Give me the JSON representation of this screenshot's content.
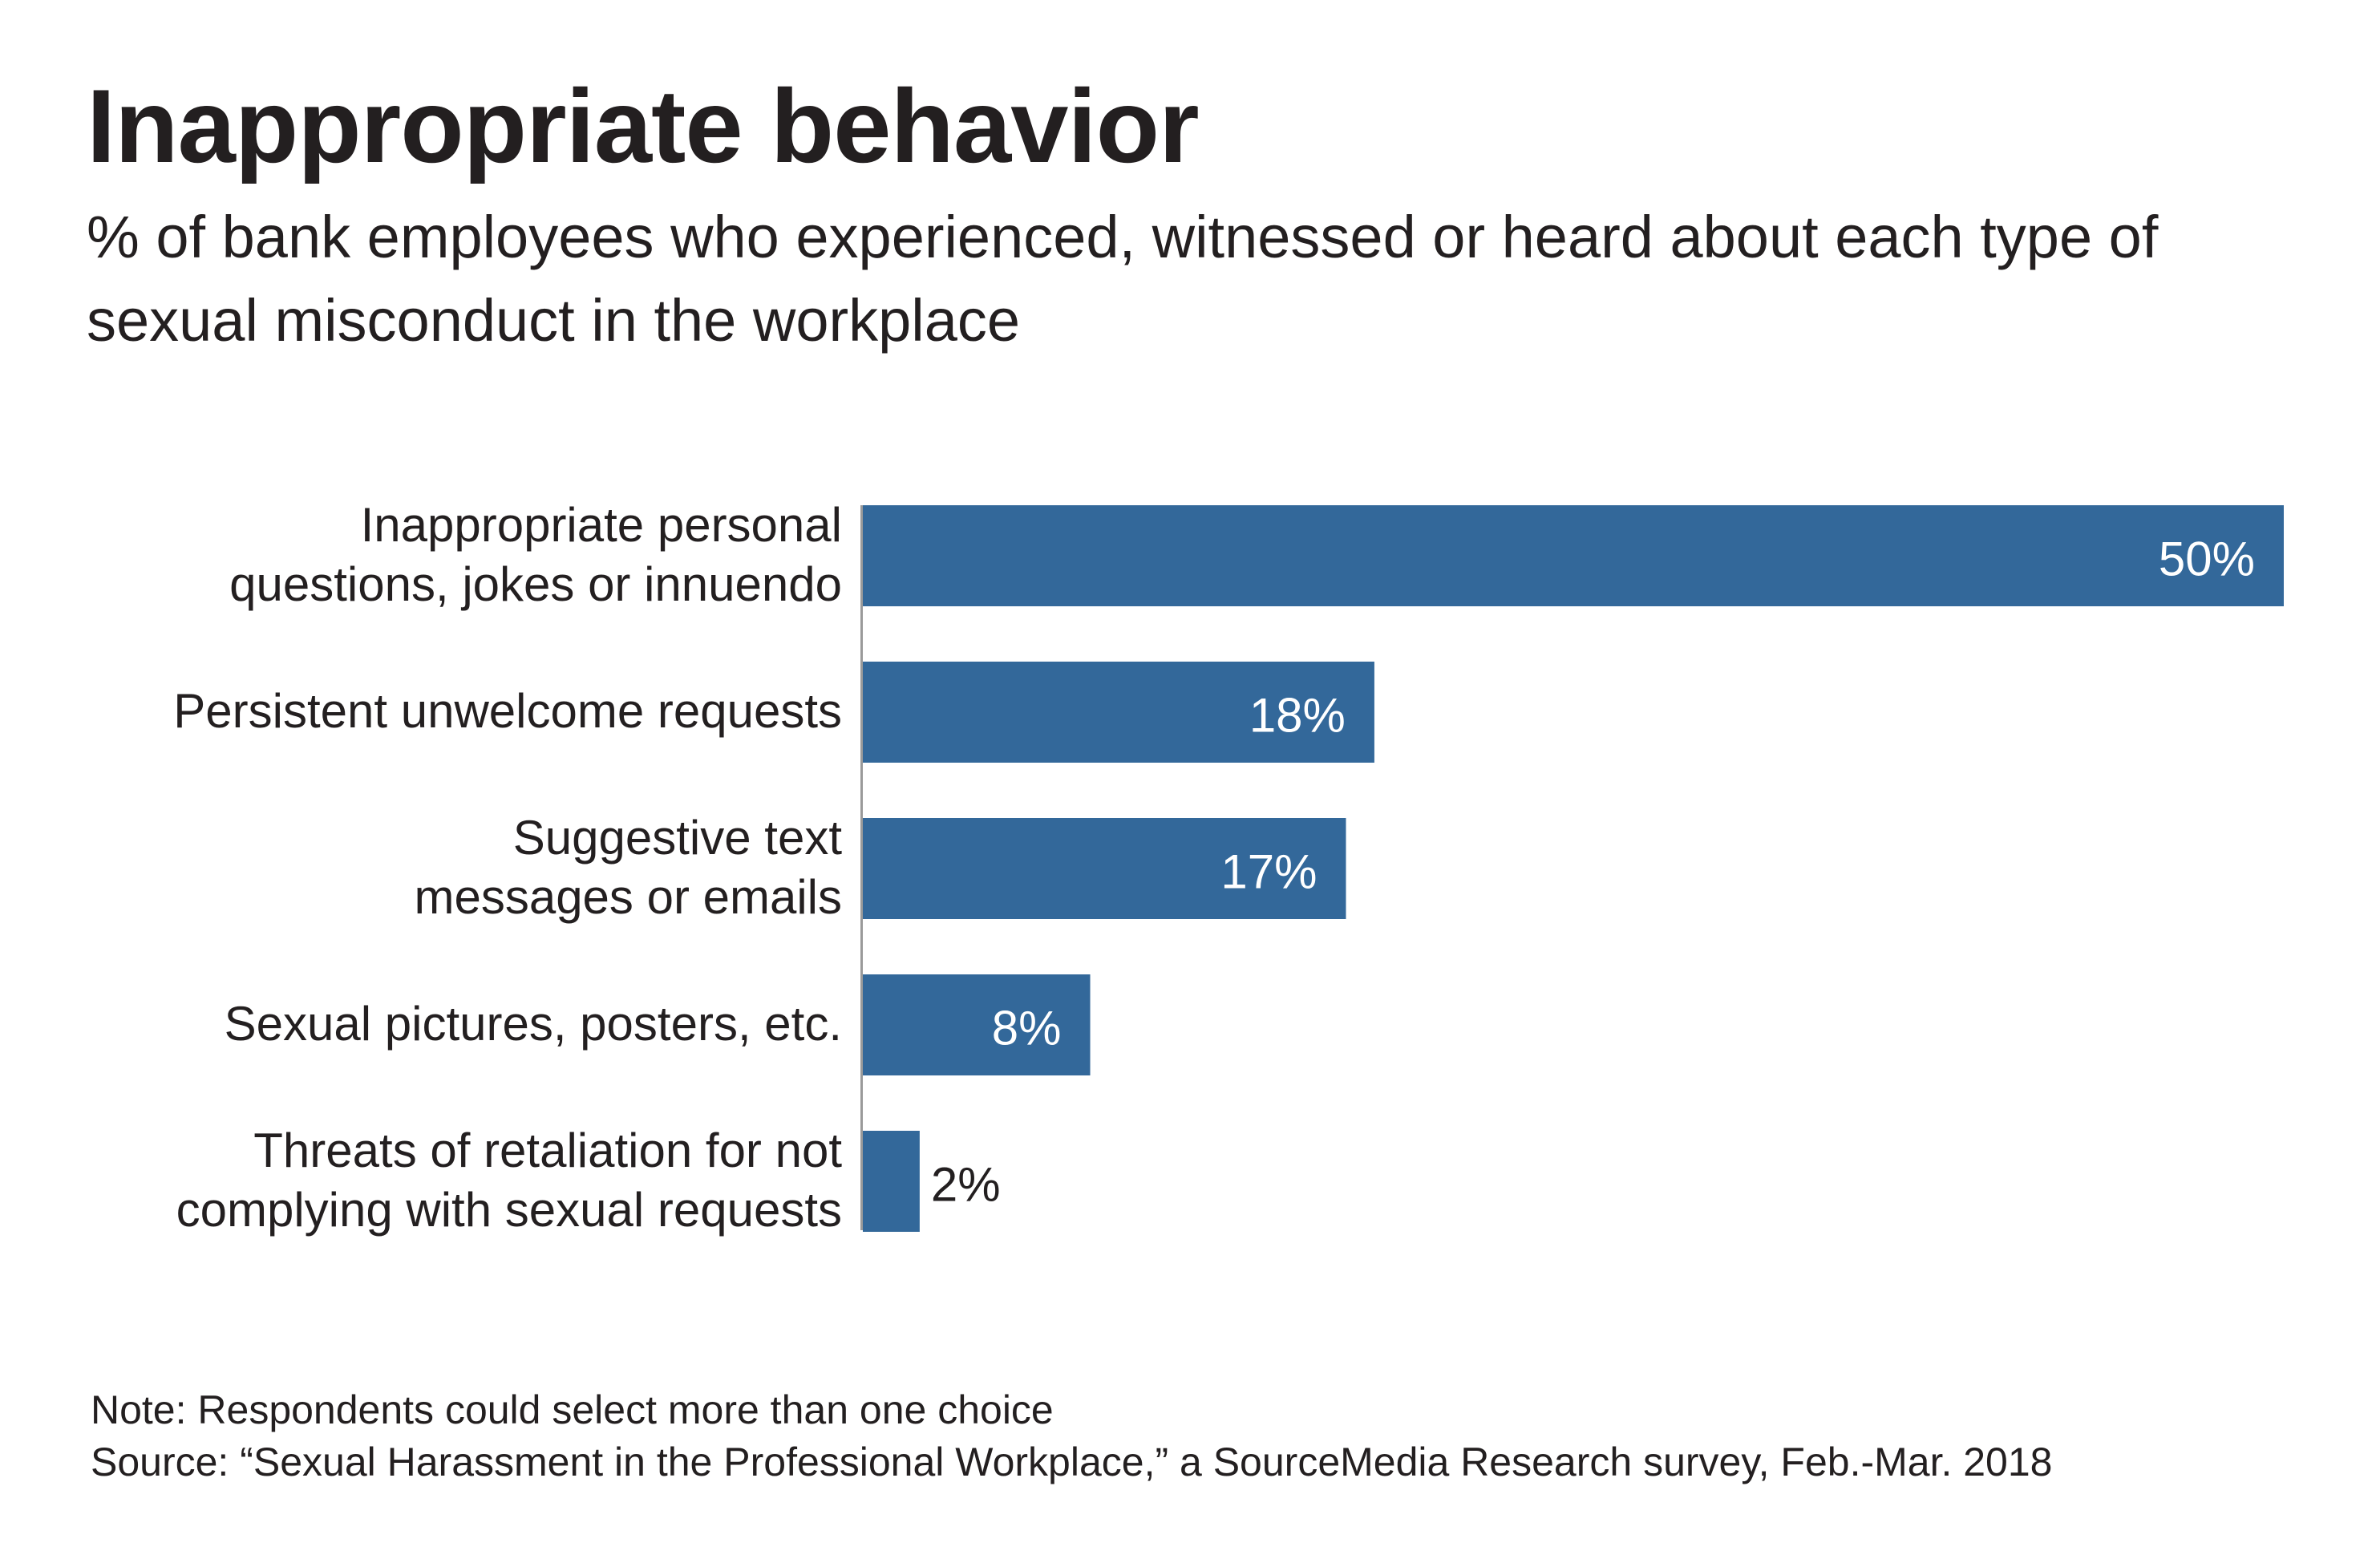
{
  "chart_data": {
    "type": "bar",
    "orientation": "horizontal",
    "title": "Inappropriate behavior",
    "subtitle": "% of bank employees who experienced, witnessed or heard about each type of sexual misconduct in the workplace",
    "categories": [
      [
        "Inappropriate personal",
        "questions, jokes or innuendo"
      ],
      [
        "Persistent unwelcome requests"
      ],
      [
        "Suggestive text",
        "messages or emails"
      ],
      [
        "Sexual pictures, posters, etc."
      ],
      [
        "Threats of retaliation for not",
        "complying with sexual requests"
      ]
    ],
    "values": [
      50,
      18,
      17,
      8,
      2
    ],
    "value_labels": [
      "50%",
      "18%",
      "17%",
      "8%",
      "2%"
    ],
    "xlim": [
      0,
      50
    ],
    "bar_color": "#33689a",
    "label_inside_color": "#ffffff",
    "label_outside_color": "#231f20",
    "xlabel": "",
    "ylabel": "",
    "grid": false,
    "legend": "none"
  },
  "footer": {
    "note": "Note: Respondents could select more than one choice",
    "source": "Source: “Sexual Harassment in the Professional Workplace,” a SourceMedia Research survey, Feb.-Mar. 2018"
  }
}
